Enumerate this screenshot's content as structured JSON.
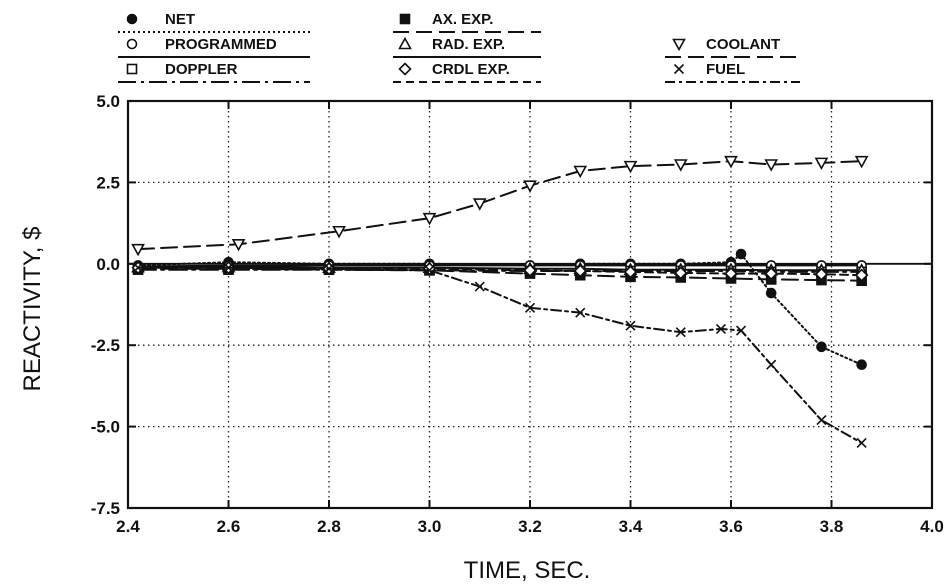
{
  "chart_data": {
    "type": "line",
    "title": "",
    "xlabel": "TIME, SEC.",
    "ylabel": "REACTIVITY, $",
    "xlim": [
      2.4,
      4.0
    ],
    "ylim": [
      -7.5,
      5.0
    ],
    "xticks": [
      "2.4",
      "2.6",
      "2.8",
      "3.0",
      "3.2",
      "3.4",
      "3.6",
      "3.8",
      "4.0"
    ],
    "yticks": [
      "5.0",
      "2.5",
      "0.0",
      "-2.5",
      "-5.0",
      "-7.5"
    ],
    "grid": true,
    "legend_position": "top",
    "series": [
      {
        "name": "NET",
        "marker": "filled-circle",
        "line": "dotted",
        "x": [
          2.42,
          2.6,
          2.8,
          3.0,
          3.2,
          3.3,
          3.4,
          3.5,
          3.6,
          3.62,
          3.68,
          3.78,
          3.86
        ],
        "y": [
          -0.05,
          0.05,
          0.0,
          0.0,
          -0.05,
          0.0,
          0.0,
          0.0,
          0.05,
          0.3,
          -0.9,
          -2.55,
          -3.1
        ]
      },
      {
        "name": "PROGRAMMED",
        "marker": "open-circle",
        "line": "solid",
        "x": [
          2.42,
          2.6,
          2.8,
          3.0,
          3.2,
          3.3,
          3.4,
          3.5,
          3.6,
          3.68,
          3.78,
          3.86
        ],
        "y": [
          -0.08,
          -0.06,
          -0.05,
          -0.05,
          -0.05,
          -0.05,
          -0.05,
          -0.05,
          -0.05,
          -0.05,
          -0.05,
          -0.05
        ]
      },
      {
        "name": "DOPPLER",
        "marker": "open-square",
        "line": "long-dash-dot",
        "x": [
          2.42,
          2.6,
          2.8,
          3.0,
          3.2,
          3.3,
          3.4,
          3.5,
          3.6,
          3.68,
          3.78,
          3.86
        ],
        "y": [
          -0.18,
          -0.18,
          -0.18,
          -0.2,
          -0.22,
          -0.22,
          -0.22,
          -0.22,
          -0.22,
          -0.25,
          -0.25,
          -0.25
        ]
      },
      {
        "name": "AX. EXP.",
        "marker": "filled-square",
        "line": "long-dash",
        "x": [
          2.42,
          2.6,
          2.8,
          3.0,
          3.2,
          3.3,
          3.4,
          3.5,
          3.6,
          3.68,
          3.78,
          3.86
        ],
        "y": [
          -0.15,
          -0.15,
          -0.18,
          -0.2,
          -0.3,
          -0.35,
          -0.4,
          -0.42,
          -0.45,
          -0.48,
          -0.5,
          -0.52
        ]
      },
      {
        "name": "RAD. EXP.",
        "marker": "open-triangle",
        "line": "solid",
        "x": [
          2.42,
          2.6,
          2.8,
          3.0,
          3.2,
          3.3,
          3.4,
          3.5,
          3.6,
          3.68,
          3.78,
          3.86
        ],
        "y": [
          -0.1,
          -0.1,
          -0.12,
          -0.12,
          -0.15,
          -0.15,
          -0.18,
          -0.18,
          -0.18,
          -0.2,
          -0.2,
          -0.2
        ]
      },
      {
        "name": "CRDL EXP.",
        "marker": "open-diamond",
        "line": "dashed",
        "x": [
          2.42,
          2.6,
          2.8,
          3.0,
          3.2,
          3.3,
          3.4,
          3.5,
          3.6,
          3.68,
          3.78,
          3.86
        ],
        "y": [
          -0.12,
          -0.12,
          -0.15,
          -0.15,
          -0.2,
          -0.22,
          -0.25,
          -0.28,
          -0.3,
          -0.3,
          -0.32,
          -0.35
        ]
      },
      {
        "name": "COOLANT",
        "marker": "open-inverted-triangle",
        "line": "long-dash",
        "x": [
          2.42,
          2.62,
          2.82,
          3.0,
          3.1,
          3.2,
          3.3,
          3.4,
          3.5,
          3.6,
          3.68,
          3.78,
          3.86
        ],
        "y": [
          0.45,
          0.6,
          1.0,
          1.4,
          1.85,
          2.4,
          2.85,
          3.0,
          3.05,
          3.15,
          3.05,
          3.1,
          3.15
        ]
      },
      {
        "name": "FUEL",
        "marker": "x",
        "line": "dash-dot",
        "x": [
          2.42,
          2.6,
          2.8,
          3.0,
          3.1,
          3.2,
          3.3,
          3.4,
          3.5,
          3.58,
          3.62,
          3.68,
          3.78,
          3.86
        ],
        "y": [
          -0.12,
          -0.12,
          -0.15,
          -0.2,
          -0.7,
          -1.35,
          -1.5,
          -1.9,
          -2.1,
          -2.0,
          -2.05,
          -3.1,
          -4.8,
          -5.5
        ]
      }
    ]
  }
}
